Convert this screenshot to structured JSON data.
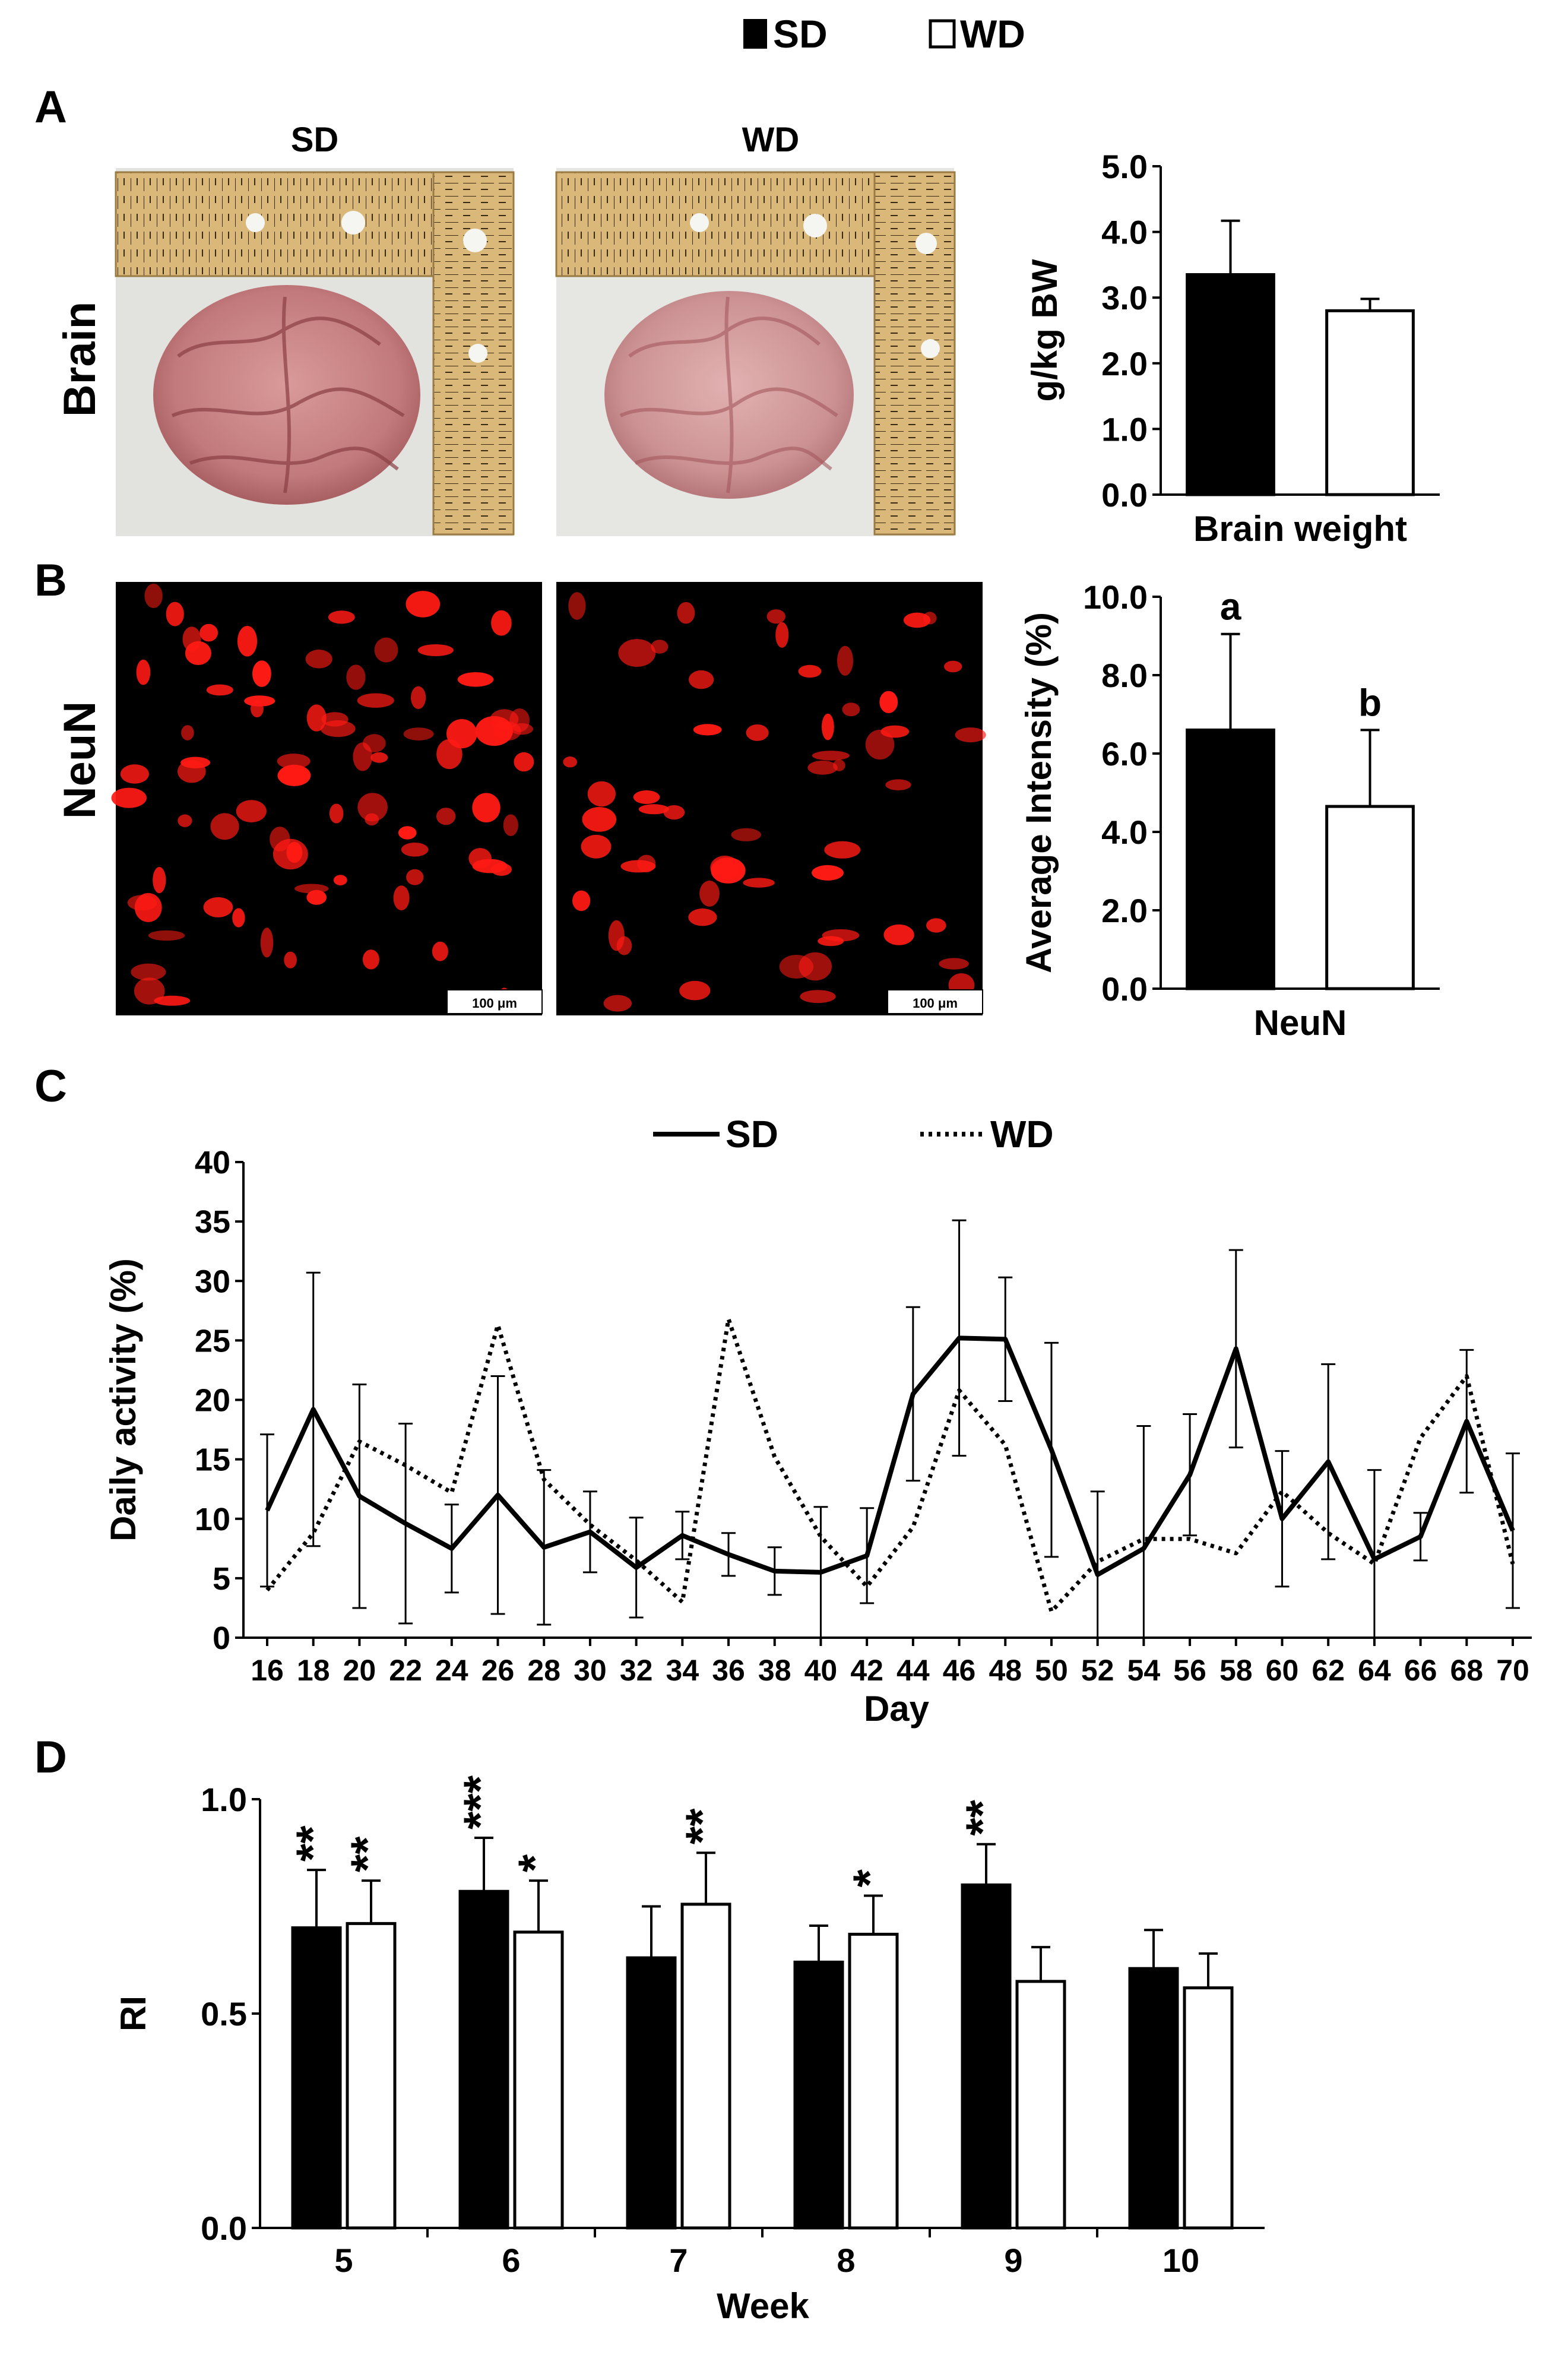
{
  "legend": {
    "items": [
      {
        "label": "SD",
        "color": "#000000"
      },
      {
        "label": "WD",
        "color": "#ffffff"
      }
    ]
  },
  "panels": {
    "A": {
      "letter": "A",
      "row_label": "Brain",
      "image_titles": [
        "SD",
        "WD"
      ]
    },
    "B": {
      "letter": "B",
      "row_label": "NeuN",
      "scale_bar_label": "100 μm"
    },
    "C": {
      "letter": "C",
      "legend": [
        "SD",
        "WD"
      ]
    },
    "D": {
      "letter": "D"
    }
  },
  "chart_data": [
    {
      "id": "A-bar",
      "type": "bar",
      "categories": [
        "SD",
        "WD"
      ],
      "values": [
        3.35,
        2.8
      ],
      "errors": [
        0.82,
        0.18
      ],
      "colors": [
        "#000000",
        "#ffffff"
      ],
      "title": "",
      "xlabel": "Brain weight",
      "ylabel": "g/kg BW",
      "ylim": [
        0,
        5
      ],
      "yticks": [
        "0.0",
        "1.0",
        "2.0",
        "3.0",
        "4.0",
        "5.0"
      ],
      "annotations": []
    },
    {
      "id": "B-bar",
      "type": "bar",
      "categories": [
        "SD",
        "WD"
      ],
      "values": [
        6.6,
        4.65
      ],
      "errors": [
        2.45,
        1.95
      ],
      "colors": [
        "#000000",
        "#ffffff"
      ],
      "title": "",
      "xlabel": "NeuN",
      "ylabel": "Average Intensity (%)",
      "ylim": [
        0,
        10
      ],
      "yticks": [
        "0.0",
        "2.0",
        "4.0",
        "6.0",
        "8.0",
        "10.0"
      ],
      "annotations": [
        "a",
        "b"
      ]
    },
    {
      "id": "C-line",
      "type": "line",
      "x": [
        16,
        18,
        20,
        22,
        24,
        26,
        28,
        30,
        32,
        34,
        36,
        38,
        40,
        42,
        44,
        46,
        48,
        50,
        52,
        54,
        56,
        58,
        60,
        62,
        64,
        66,
        68,
        70
      ],
      "xticks": [
        "16",
        "18",
        "20",
        "22",
        "24",
        "26",
        "28",
        "30",
        "32",
        "34",
        "36",
        "38",
        "40",
        "42",
        "44",
        "46",
        "48",
        "50",
        "52",
        "54",
        "56",
        "58",
        "60",
        "62",
        "64",
        "66",
        "68",
        "70"
      ],
      "series": [
        {
          "name": "SD",
          "style": "solid",
          "values": [
            10.7,
            19.2,
            11.9,
            9.6,
            7.5,
            12.0,
            7.6,
            8.9,
            5.9,
            8.6,
            7.0,
            5.6,
            5.5,
            6.9,
            20.5,
            25.2,
            25.1,
            15.8,
            5.3,
            7.5,
            13.7,
            24.3,
            10.0,
            14.8,
            6.6,
            8.5,
            18.2,
            9.0
          ],
          "errors": [
            6.4,
            11.5,
            9.4,
            8.4,
            3.7,
            10.0,
            6.5,
            3.4,
            4.2,
            2.0,
            1.8,
            2.0,
            5.5,
            4.0,
            7.3,
            9.9,
            5.2,
            9.0,
            7.0,
            10.3,
            5.1,
            8.3,
            5.7,
            8.2,
            7.5,
            2.0,
            6.0,
            6.5
          ]
        },
        {
          "name": "WD",
          "style": "dotted",
          "values": [
            4.0,
            8.8,
            16.5,
            14.5,
            12.2,
            26.3,
            13.3,
            9.5,
            6.5,
            3.0,
            26.8,
            15.2,
            8.5,
            4.3,
            9.3,
            20.8,
            16.2,
            2.2,
            6.4,
            8.3,
            8.3,
            7.1,
            12.3,
            8.8,
            6.2,
            16.8,
            22.0,
            6.2
          ]
        }
      ],
      "xlabel": "Day",
      "ylabel": "Daily activity (%)",
      "ylim": [
        0,
        40
      ],
      "yticks": [
        "0",
        "5",
        "10",
        "15",
        "20",
        "25",
        "30",
        "35",
        "40"
      ]
    },
    {
      "id": "D-bar",
      "type": "bar",
      "categories": [
        "5",
        "6",
        "7",
        "8",
        "9",
        "10"
      ],
      "series": [
        {
          "name": "SD",
          "color": "#000000",
          "values": [
            0.7,
            0.785,
            0.63,
            0.62,
            0.8,
            0.605
          ],
          "errors": [
            0.135,
            0.125,
            0.12,
            0.085,
            0.095,
            0.09
          ],
          "stars": [
            "**",
            "***",
            "",
            "",
            "**",
            ""
          ]
        },
        {
          "name": "WD",
          "color": "#ffffff",
          "values": [
            0.71,
            0.69,
            0.755,
            0.685,
            0.575,
            0.56
          ],
          "errors": [
            0.1,
            0.12,
            0.12,
            0.09,
            0.08,
            0.08
          ],
          "stars": [
            "**",
            "*",
            "**",
            "*",
            "",
            ""
          ]
        }
      ],
      "xlabel": "Week",
      "ylabel": "RI",
      "ylim": [
        0,
        1.0
      ],
      "yticks": [
        "0.0",
        "0.5",
        "1.0"
      ]
    }
  ]
}
